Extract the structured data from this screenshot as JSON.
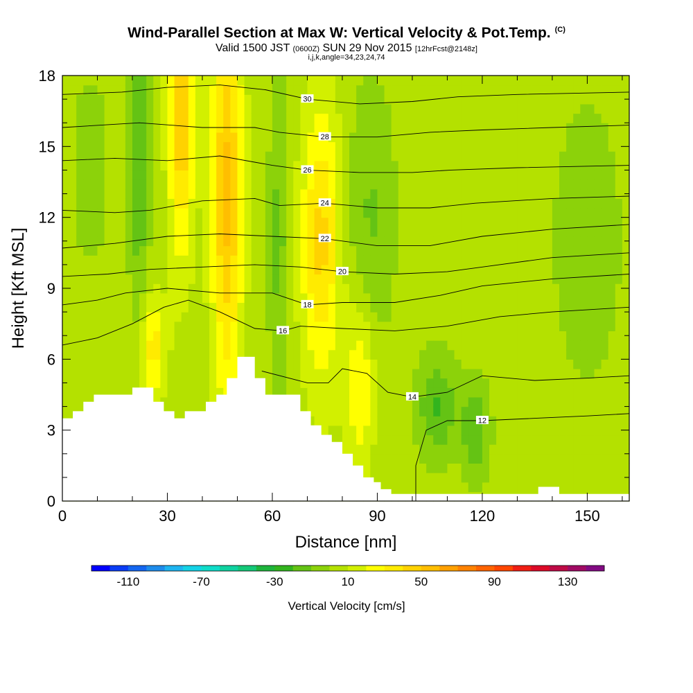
{
  "header": {
    "title": "Wind-Parallel Section at Max W: Vertical Velocity & Pot.Temp.",
    "title_tag": "(C)",
    "valid_prefix": "Valid 1500 JST",
    "valid_z": "(0600Z)",
    "valid_date": "SUN 29 Nov 2015",
    "valid_fcst": "[12hrFcst@2148z]",
    "indices": "i,j,k,angle=34,23,24,74"
  },
  "chart_data": {
    "type": "heatmap",
    "title": "Wind-Parallel Section at Max W: Vertical Velocity & Pot.Temp.",
    "xlabel": "Distance [nm]",
    "ylabel": "Height [Kft MSL]",
    "xlim": [
      0,
      162
    ],
    "ylim": [
      0,
      18
    ],
    "x_ticks": [
      "0",
      "30",
      "60",
      "90",
      "120",
      "150"
    ],
    "x_tick_values": [
      0,
      30,
      60,
      90,
      120,
      150
    ],
    "y_ticks": [
      "0",
      "3",
      "6",
      "9",
      "12",
      "15",
      "18"
    ],
    "y_tick_values": [
      0,
      3,
      6,
      9,
      12,
      15,
      18
    ],
    "colorbar": {
      "title": "Vertical Velocity [cm/s]",
      "labels": [
        "-110",
        "-70",
        "-30",
        "10",
        "50",
        "90",
        "130"
      ],
      "label_values": [
        -110,
        -70,
        -30,
        10,
        50,
        90,
        130
      ],
      "min": -130,
      "max": 150,
      "step": 10,
      "colors": [
        "#0000ff",
        "#0a3cf5",
        "#1466f0",
        "#1e8ceb",
        "#1eb4f0",
        "#14d2e6",
        "#0fdcc8",
        "#0fd2a0",
        "#14c878",
        "#1eb43c",
        "#32b41e",
        "#64c314",
        "#8cd20a",
        "#b4e100",
        "#d2f000",
        "#ffff00",
        "#ffeb00",
        "#ffd200",
        "#ffbe00",
        "#ffa000",
        "#ff8200",
        "#ff6400",
        "#ff4600",
        "#f01e14",
        "#dc0a28",
        "#be0a46",
        "#a00a64",
        "#820a82"
      ]
    },
    "theta_contours": [
      {
        "level": 12,
        "label": "12",
        "points": [
          [
            101,
            0
          ],
          [
            101,
            1.5
          ],
          [
            104,
            3
          ],
          [
            110,
            3.4
          ],
          [
            120,
            3.4
          ],
          [
            135,
            3.5
          ],
          [
            150,
            3.6
          ],
          [
            162,
            3.7
          ]
        ]
      },
      {
        "level": 14,
        "label": "14",
        "points": [
          [
            57,
            5.5
          ],
          [
            70,
            5.0
          ],
          [
            76,
            5.0
          ],
          [
            80,
            5.6
          ],
          [
            87,
            5.4
          ],
          [
            93,
            4.6
          ],
          [
            100,
            4.4
          ],
          [
            110,
            4.6
          ],
          [
            120,
            5.3
          ],
          [
            135,
            5.1
          ],
          [
            150,
            5.2
          ],
          [
            162,
            5.3
          ]
        ]
      },
      {
        "level": 16,
        "label": "16",
        "points": [
          [
            0,
            6.6
          ],
          [
            10,
            6.9
          ],
          [
            20,
            7.5
          ],
          [
            29,
            8.2
          ],
          [
            36,
            8.5
          ],
          [
            45,
            8.0
          ],
          [
            55,
            7.3
          ],
          [
            63,
            7.2
          ],
          [
            68,
            7.4
          ],
          [
            80,
            7.3
          ],
          [
            95,
            7.2
          ],
          [
            110,
            7.4
          ],
          [
            125,
            7.8
          ],
          [
            140,
            8.0
          ],
          [
            162,
            8.2
          ]
        ]
      },
      {
        "level": 18,
        "label": "18",
        "points": [
          [
            0,
            8.3
          ],
          [
            10,
            8.5
          ],
          [
            18,
            8.8
          ],
          [
            30,
            9.0
          ],
          [
            45,
            8.8
          ],
          [
            55,
            8.8
          ],
          [
            60,
            8.8
          ],
          [
            70,
            8.3
          ],
          [
            80,
            8.4
          ],
          [
            95,
            8.4
          ],
          [
            108,
            8.7
          ],
          [
            120,
            9.1
          ],
          [
            140,
            9.4
          ],
          [
            162,
            9.6
          ]
        ]
      },
      {
        "level": 20,
        "label": "20",
        "points": [
          [
            0,
            9.5
          ],
          [
            13,
            9.6
          ],
          [
            25,
            9.8
          ],
          [
            40,
            9.9
          ],
          [
            55,
            10.0
          ],
          [
            68,
            9.9
          ],
          [
            80,
            9.7
          ],
          [
            95,
            9.6
          ],
          [
            110,
            9.7
          ],
          [
            120,
            9.9
          ],
          [
            140,
            10.3
          ],
          [
            162,
            10.5
          ]
        ]
      },
      {
        "level": 22,
        "label": "22",
        "points": [
          [
            0,
            10.7
          ],
          [
            15,
            10.9
          ],
          [
            30,
            11.2
          ],
          [
            45,
            11.3
          ],
          [
            60,
            11.2
          ],
          [
            75,
            11.1
          ],
          [
            90,
            10.8
          ],
          [
            105,
            10.8
          ],
          [
            120,
            11.2
          ],
          [
            140,
            11.5
          ],
          [
            162,
            11.7
          ]
        ]
      },
      {
        "level": 24,
        "label": "24",
        "points": [
          [
            0,
            12.3
          ],
          [
            15,
            12.2
          ],
          [
            25,
            12.3
          ],
          [
            40,
            12.7
          ],
          [
            55,
            12.8
          ],
          [
            62,
            12.5
          ],
          [
            75,
            12.6
          ],
          [
            90,
            12.4
          ],
          [
            105,
            12.4
          ],
          [
            118,
            12.6
          ],
          [
            140,
            12.8
          ],
          [
            162,
            12.9
          ]
        ]
      },
      {
        "level": 26,
        "label": "26",
        "points": [
          [
            0,
            14.4
          ],
          [
            15,
            14.5
          ],
          [
            30,
            14.4
          ],
          [
            45,
            14.6
          ],
          [
            60,
            14.2
          ],
          [
            70,
            14.0
          ],
          [
            85,
            13.9
          ],
          [
            100,
            13.9
          ],
          [
            111,
            14.0
          ],
          [
            130,
            14.1
          ],
          [
            162,
            14.2
          ]
        ]
      },
      {
        "level": 28,
        "label": "28",
        "points": [
          [
            0,
            15.8
          ],
          [
            22,
            16.0
          ],
          [
            40,
            15.8
          ],
          [
            55,
            15.8
          ],
          [
            62,
            15.6
          ],
          [
            75,
            15.4
          ],
          [
            90,
            15.4
          ],
          [
            105,
            15.6
          ],
          [
            120,
            15.7
          ],
          [
            140,
            15.8
          ],
          [
            162,
            15.9
          ]
        ]
      },
      {
        "level": 30,
        "label": "30",
        "points": [
          [
            0,
            17.2
          ],
          [
            17,
            17.3
          ],
          [
            30,
            17.5
          ],
          [
            45,
            17.6
          ],
          [
            58,
            17.4
          ],
          [
            70,
            17.0
          ],
          [
            85,
            16.8
          ],
          [
            100,
            16.9
          ],
          [
            113,
            17.1
          ],
          [
            130,
            17.2
          ],
          [
            162,
            17.3
          ]
        ]
      }
    ],
    "terrain_kft": [
      [
        0,
        3.5
      ],
      [
        3,
        3.5
      ],
      [
        3,
        3.8
      ],
      [
        6,
        3.8
      ],
      [
        6,
        4.2
      ],
      [
        9,
        4.2
      ],
      [
        9,
        4.5
      ],
      [
        20,
        4.5
      ],
      [
        20,
        4.8
      ],
      [
        26,
        4.8
      ],
      [
        26,
        4.2
      ],
      [
        29,
        4.2
      ],
      [
        29,
        3.8
      ],
      [
        32,
        3.8
      ],
      [
        32,
        3.5
      ],
      [
        35,
        3.5
      ],
      [
        35,
        3.8
      ],
      [
        41,
        3.8
      ],
      [
        41,
        4.2
      ],
      [
        44,
        4.2
      ],
      [
        44,
        4.5
      ],
      [
        47,
        4.5
      ],
      [
        47,
        5.2
      ],
      [
        50,
        5.2
      ],
      [
        50,
        6.1
      ],
      [
        55,
        6.1
      ],
      [
        55,
        5.2
      ],
      [
        58,
        5.2
      ],
      [
        58,
        4.5
      ],
      [
        68,
        4.5
      ],
      [
        68,
        3.8
      ],
      [
        71,
        3.8
      ],
      [
        71,
        3.2
      ],
      [
        74,
        3.2
      ],
      [
        74,
        2.8
      ],
      [
        77,
        2.8
      ],
      [
        77,
        2.5
      ],
      [
        80,
        2.5
      ],
      [
        80,
        2.0
      ],
      [
        83,
        2.0
      ],
      [
        83,
        1.5
      ],
      [
        86,
        1.5
      ],
      [
        86,
        1.0
      ],
      [
        89,
        1.0
      ],
      [
        89,
        0.8
      ],
      [
        91,
        0.8
      ],
      [
        91,
        0.5
      ],
      [
        94,
        0.5
      ],
      [
        94,
        0.3
      ],
      [
        136,
        0.3
      ],
      [
        136,
        0.6
      ],
      [
        142,
        0.6
      ],
      [
        142,
        0.3
      ],
      [
        162,
        0.3
      ],
      [
        162,
        0
      ]
    ],
    "velocity_features": [
      {
        "x": 47,
        "y": 13,
        "sx": 3,
        "sy": 6,
        "w": 48
      },
      {
        "x": 34,
        "y": 16,
        "sx": 2.5,
        "sy": 4,
        "w": 42
      },
      {
        "x": 74,
        "y": 11,
        "sx": 4,
        "sy": 4,
        "w": 38
      },
      {
        "x": 26,
        "y": 6.5,
        "sx": 2.5,
        "sy": 1.5,
        "w": 30
      },
      {
        "x": 85,
        "y": 5,
        "sx": 3,
        "sy": 2.5,
        "w": 26
      },
      {
        "x": 62,
        "y": 11,
        "sx": 2,
        "sy": 7,
        "w": -18
      },
      {
        "x": 22,
        "y": 15,
        "sx": 2,
        "sy": 5,
        "w": -25
      },
      {
        "x": 107,
        "y": 4,
        "sx": 4,
        "sy": 1.5,
        "w": -26
      },
      {
        "x": 118,
        "y": 3,
        "sx": 3,
        "sy": 1.5,
        "w": -22
      },
      {
        "x": 88,
        "y": 12,
        "sx": 5,
        "sy": 4,
        "w": -16
      },
      {
        "x": 150,
        "y": 11,
        "sx": 8,
        "sy": 5,
        "w": -10
      },
      {
        "x": 8,
        "y": 14,
        "sx": 5,
        "sy": 4,
        "w": -8
      }
    ],
    "velocity_base": 5
  }
}
